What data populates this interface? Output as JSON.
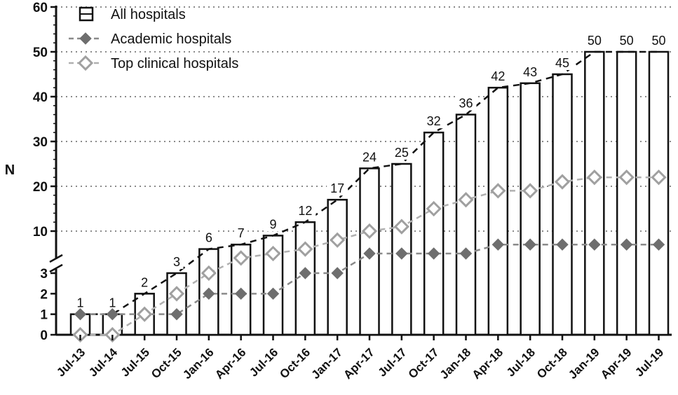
{
  "chart_data": {
    "type": "bar",
    "title": "",
    "xlabel": "",
    "ylabel": "N",
    "ylim": [
      0,
      60
    ],
    "axis_break": {
      "lower_range": [
        0,
        3
      ],
      "upper_range": [
        3,
        60
      ]
    },
    "y_ticks_lower": [
      "0",
      "1",
      "2",
      "3"
    ],
    "y_ticks_upper": [
      "10",
      "20",
      "30",
      "40",
      "50",
      "60"
    ],
    "gridlines": "dotted, upper segment only",
    "legend_position": "top-left",
    "categories": [
      "Jul-13",
      "Jul-14",
      "Jul-15",
      "Oct-15",
      "Jan-16",
      "Apr-16",
      "Jul-16",
      "Oct-16",
      "Jan-17",
      "Apr-17",
      "Jul-17",
      "Oct-17",
      "Jan-18",
      "Apr-18",
      "Jul-18",
      "Oct-18",
      "Jan-19",
      "Apr-19",
      "Jul-19"
    ],
    "series": [
      {
        "name": "All hospitals",
        "kind": "bar",
        "color": "#111111",
        "values": [
          1,
          1,
          2,
          3,
          6,
          7,
          9,
          12,
          17,
          24,
          25,
          32,
          36,
          42,
          43,
          45,
          50,
          50,
          50
        ],
        "labels": [
          "1",
          "1",
          "2",
          "3",
          "6",
          "7",
          "9",
          "12",
          "17",
          "24",
          "25",
          "32",
          "36",
          "42",
          "43",
          "45",
          "50",
          "50",
          "50"
        ]
      },
      {
        "name": "Academic hospitals",
        "kind": "line-filled-diamond",
        "color": "#6e6e6e",
        "values": [
          1,
          1,
          1,
          1,
          2,
          2,
          2,
          3,
          3,
          5,
          5,
          5,
          5,
          7,
          7,
          7,
          7,
          7,
          7
        ]
      },
      {
        "name": "Top clinical hospitals",
        "kind": "line-open-diamond",
        "color": "#a0a0a0",
        "values": [
          0,
          0,
          1,
          2,
          3,
          4,
          5,
          6,
          8,
          10,
          11,
          15,
          17,
          19,
          19,
          21,
          22,
          22,
          22
        ]
      }
    ]
  }
}
